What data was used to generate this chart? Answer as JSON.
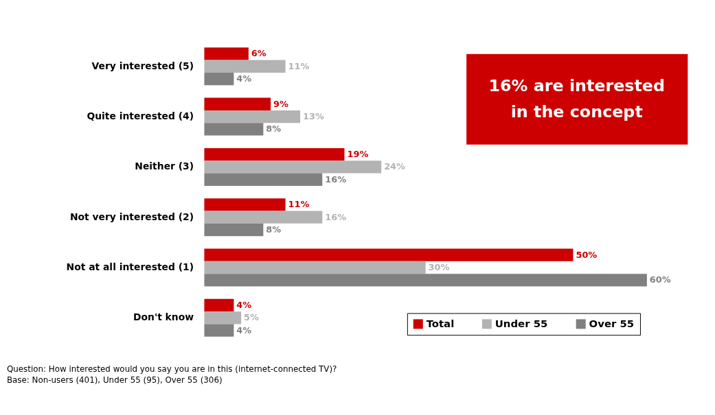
{
  "chart_data": {
    "type": "bar",
    "orientation": "horizontal",
    "legend": "bottom right",
    "data_labels": true,
    "categories": [
      "Very interested (5)",
      "Quite interested (4)",
      "Neither (3)",
      "Not very interested (2)",
      "Not at all interested (1)",
      "Don't know"
    ],
    "series": [
      {
        "name": "Total",
        "color": "#cc0000",
        "values": [
          6,
          9,
          19,
          11,
          50,
          4
        ],
        "value_labels": [
          "6%",
          "9%",
          "19%",
          "11%",
          "50%",
          "4%"
        ]
      },
      {
        "name": "Under 55",
        "color": "#b3b3b3",
        "values": [
          11,
          13,
          24,
          16,
          30,
          5
        ],
        "value_labels": [
          "11%",
          "13%",
          "24%",
          "16%",
          "30%",
          "5%"
        ]
      },
      {
        "name": "Over 55",
        "color": "#808080",
        "values": [
          4,
          8,
          16,
          8,
          60,
          4
        ],
        "value_labels": [
          "4%",
          "8%",
          "16%",
          "8%",
          "60%",
          "4%"
        ]
      }
    ],
    "annotations": [
      "16% are interested in the concept",
      "Question: How interested would you say you are in this (internet-connected TV)?",
      "Base: Non-users (401), Under 55 (95), Over 55 (306)"
    ]
  }
}
